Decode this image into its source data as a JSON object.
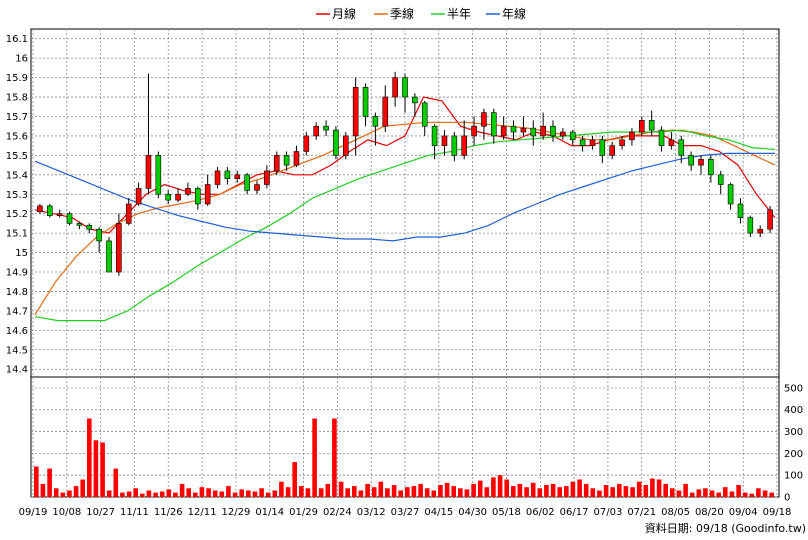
{
  "legend": [
    {
      "label": "月線",
      "color": "#e00000"
    },
    {
      "label": "季線",
      "color": "#e06a10"
    },
    {
      "label": "半年",
      "color": "#22cc22"
    },
    {
      "label": "年線",
      "color": "#1f5fd0"
    }
  ],
  "credit": "資料日期: 09/18 (Goodinfo.tw)",
  "chart_data": [
    {
      "type": "candlestick",
      "panel": "price",
      "y_ticks": [
        14.4,
        14.5,
        14.6,
        14.7,
        14.8,
        14.9,
        15,
        15.1,
        15.2,
        15.3,
        15.4,
        15.5,
        15.6,
        15.7,
        15.8,
        15.9,
        16,
        16.1
      ],
      "ylim": [
        14.36,
        16.15
      ],
      "x_tick_labels": [
        "09/19",
        "10/08",
        "10/27",
        "11/11",
        "11/26",
        "12/11",
        "12/29",
        "01/14",
        "01/29",
        "02/24",
        "03/12",
        "03/27",
        "04/15",
        "04/30",
        "05/18",
        "06/02",
        "06/17",
        "07/03",
        "07/21",
        "08/05",
        "08/20",
        "09/04",
        "09/18"
      ],
      "grid": true,
      "series": [
        {
          "name": "月線",
          "color": "#e00000",
          "values": [
            15.22,
            15.2,
            15.18,
            15.12,
            15.1,
            15.2,
            15.3,
            15.35,
            15.32,
            15.3,
            15.3,
            15.35,
            15.4,
            15.42,
            15.4,
            15.4,
            15.45,
            15.52,
            15.58,
            15.55,
            15.6,
            15.8,
            15.78,
            15.65,
            15.62,
            15.6,
            15.58,
            15.62,
            15.6,
            15.55,
            15.55,
            15.58,
            15.6,
            15.6,
            15.6,
            15.55,
            15.55,
            15.52,
            15.45,
            15.3,
            15.18
          ]
        },
        {
          "name": "季線",
          "color": "#e06a10",
          "values": [
            14.68,
            14.85,
            14.98,
            15.08,
            15.15,
            15.2,
            15.23,
            15.25,
            15.27,
            15.3,
            15.35,
            15.38,
            15.42,
            15.46,
            15.5,
            15.55,
            15.6,
            15.65,
            15.66,
            15.67,
            15.67,
            15.67,
            15.66,
            15.65,
            15.64,
            15.62,
            15.6,
            15.58,
            15.58,
            15.6,
            15.62,
            15.63,
            15.62,
            15.6,
            15.55,
            15.5,
            15.45
          ]
        },
        {
          "name": "半年",
          "color": "#22cc22",
          "values": [
            14.67,
            14.65,
            14.65,
            14.65,
            14.7,
            14.78,
            14.85,
            14.93,
            15.0,
            15.07,
            15.13,
            15.2,
            15.28,
            15.33,
            15.38,
            15.42,
            15.46,
            15.5,
            15.52,
            15.55,
            15.57,
            15.58,
            15.59,
            15.6,
            15.61,
            15.62,
            15.62,
            15.62,
            15.63,
            15.6,
            15.58,
            15.54,
            15.53
          ]
        },
        {
          "name": "年線",
          "color": "#1f5fd0",
          "values": [
            15.47,
            15.42,
            15.37,
            15.32,
            15.27,
            15.23,
            15.19,
            15.16,
            15.13,
            15.11,
            15.1,
            15.09,
            15.08,
            15.07,
            15.07,
            15.06,
            15.08,
            15.08,
            15.1,
            15.14,
            15.2,
            15.25,
            15.3,
            15.34,
            15.38,
            15.42,
            15.45,
            15.48,
            15.5,
            15.51,
            15.51,
            15.51
          ]
        }
      ],
      "candles": [
        [
          15.21,
          15.24,
          15.25,
          15.2
        ],
        [
          15.24,
          15.19,
          15.25,
          15.18
        ],
        [
          15.19,
          15.2,
          15.22,
          15.18
        ],
        [
          15.2,
          15.15,
          15.21,
          15.14
        ],
        [
          15.15,
          15.14,
          15.16,
          15.12
        ],
        [
          15.14,
          15.12,
          15.15,
          15.1
        ],
        [
          15.12,
          15.06,
          15.13,
          15.0
        ],
        [
          15.06,
          14.9,
          15.08,
          14.9
        ],
        [
          14.9,
          15.15,
          15.2,
          14.88
        ],
        [
          15.15,
          15.25,
          15.28,
          15.14
        ],
        [
          15.25,
          15.33,
          15.36,
          15.24
        ],
        [
          15.33,
          15.5,
          15.92,
          15.3
        ],
        [
          15.5,
          15.3,
          15.52,
          15.28
        ],
        [
          15.3,
          15.27,
          15.32,
          15.25
        ],
        [
          15.27,
          15.3,
          15.33,
          15.26
        ],
        [
          15.3,
          15.33,
          15.36,
          15.29
        ],
        [
          15.33,
          15.25,
          15.34,
          15.22
        ],
        [
          15.25,
          15.35,
          15.4,
          15.24
        ],
        [
          15.35,
          15.42,
          15.44,
          15.33
        ],
        [
          15.42,
          15.38,
          15.44,
          15.35
        ],
        [
          15.38,
          15.4,
          15.42,
          15.36
        ],
        [
          15.4,
          15.32,
          15.41,
          15.3
        ],
        [
          15.32,
          15.35,
          15.37,
          15.3
        ],
        [
          15.35,
          15.42,
          15.45,
          15.33
        ],
        [
          15.42,
          15.5,
          15.52,
          15.4
        ],
        [
          15.5,
          15.45,
          15.52,
          15.42
        ],
        [
          15.45,
          15.52,
          15.55,
          15.44
        ],
        [
          15.52,
          15.6,
          15.62,
          15.5
        ],
        [
          15.6,
          15.65,
          15.67,
          15.58
        ],
        [
          15.65,
          15.63,
          15.68,
          15.6
        ],
        [
          15.63,
          15.5,
          15.65,
          15.48
        ],
        [
          15.5,
          15.6,
          15.62,
          15.48
        ],
        [
          15.6,
          15.85,
          15.9,
          15.5
        ],
        [
          15.85,
          15.7,
          15.87,
          15.65
        ],
        [
          15.7,
          15.65,
          15.72,
          15.55
        ],
        [
          15.65,
          15.8,
          15.86,
          15.62
        ],
        [
          15.8,
          15.9,
          15.93,
          15.75
        ],
        [
          15.9,
          15.8,
          15.92,
          15.72
        ],
        [
          15.8,
          15.77,
          15.82,
          15.7
        ],
        [
          15.77,
          15.65,
          15.78,
          15.6
        ],
        [
          15.65,
          15.55,
          15.66,
          15.48
        ],
        [
          15.55,
          15.6,
          15.63,
          15.5
        ],
        [
          15.6,
          15.5,
          15.62,
          15.47
        ],
        [
          15.5,
          15.6,
          15.68,
          15.48
        ],
        [
          15.6,
          15.65,
          15.7,
          15.55
        ],
        [
          15.65,
          15.72,
          15.74,
          15.58
        ],
        [
          15.72,
          15.6,
          15.74,
          15.56
        ],
        [
          15.6,
          15.65,
          15.7,
          15.58
        ],
        [
          15.65,
          15.62,
          15.68,
          15.58
        ],
        [
          15.62,
          15.64,
          15.7,
          15.6
        ],
        [
          15.64,
          15.6,
          15.68,
          15.55
        ],
        [
          15.6,
          15.65,
          15.72,
          15.58
        ],
        [
          15.65,
          15.6,
          15.68,
          15.57
        ],
        [
          15.6,
          15.62,
          15.64,
          15.58
        ],
        [
          15.62,
          15.58,
          15.63,
          15.55
        ],
        [
          15.58,
          15.55,
          15.6,
          15.52
        ],
        [
          15.55,
          15.58,
          15.6,
          15.53
        ],
        [
          15.58,
          15.5,
          15.6,
          15.46
        ],
        [
          15.5,
          15.55,
          15.57,
          15.48
        ],
        [
          15.55,
          15.58,
          15.6,
          15.53
        ],
        [
          15.58,
          15.62,
          15.64,
          15.55
        ],
        [
          15.62,
          15.68,
          15.7,
          15.6
        ],
        [
          15.68,
          15.63,
          15.73,
          15.6
        ],
        [
          15.63,
          15.55,
          15.65,
          15.52
        ],
        [
          15.55,
          15.58,
          15.62,
          15.53
        ],
        [
          15.58,
          15.5,
          15.6,
          15.46
        ],
        [
          15.5,
          15.45,
          15.52,
          15.42
        ],
        [
          15.45,
          15.48,
          15.5,
          15.4
        ],
        [
          15.48,
          15.4,
          15.5,
          15.36
        ],
        [
          15.4,
          15.35,
          15.42,
          15.3
        ],
        [
          15.35,
          15.25,
          15.36,
          15.22
        ],
        [
          15.25,
          15.18,
          15.28,
          15.15
        ],
        [
          15.18,
          15.1,
          15.19,
          15.08
        ],
        [
          15.1,
          15.12,
          15.14,
          15.08
        ],
        [
          15.12,
          15.22,
          15.24,
          15.1
        ]
      ]
    },
    {
      "type": "bar",
      "panel": "volume",
      "color": "#ff0000",
      "y_ticks": [
        0,
        100,
        200,
        300,
        400,
        500
      ],
      "ylim": [
        0,
        550
      ],
      "values": [
        140,
        60,
        130,
        40,
        20,
        30,
        50,
        80,
        360,
        260,
        250,
        30,
        130,
        20,
        25,
        40,
        15,
        30,
        20,
        25,
        35,
        20,
        60,
        40,
        20,
        45,
        40,
        30,
        25,
        50,
        20,
        35,
        30,
        25,
        40,
        20,
        30,
        70,
        45,
        160,
        50,
        40,
        360,
        40,
        60,
        360,
        70,
        40,
        50,
        30,
        60,
        45,
        70,
        40,
        55,
        30,
        45,
        50,
        60,
        40,
        30,
        55,
        65,
        50,
        40,
        35,
        60,
        75,
        45,
        90,
        100,
        80,
        50,
        60,
        45,
        65,
        40,
        55,
        60,
        45,
        50,
        70,
        80,
        60,
        40,
        30,
        55,
        45,
        60,
        50,
        45,
        70,
        55,
        85,
        80,
        60,
        40,
        30,
        60,
        20,
        35,
        40,
        30,
        20,
        45,
        25,
        55,
        20,
        15,
        40,
        30,
        20
      ]
    }
  ]
}
